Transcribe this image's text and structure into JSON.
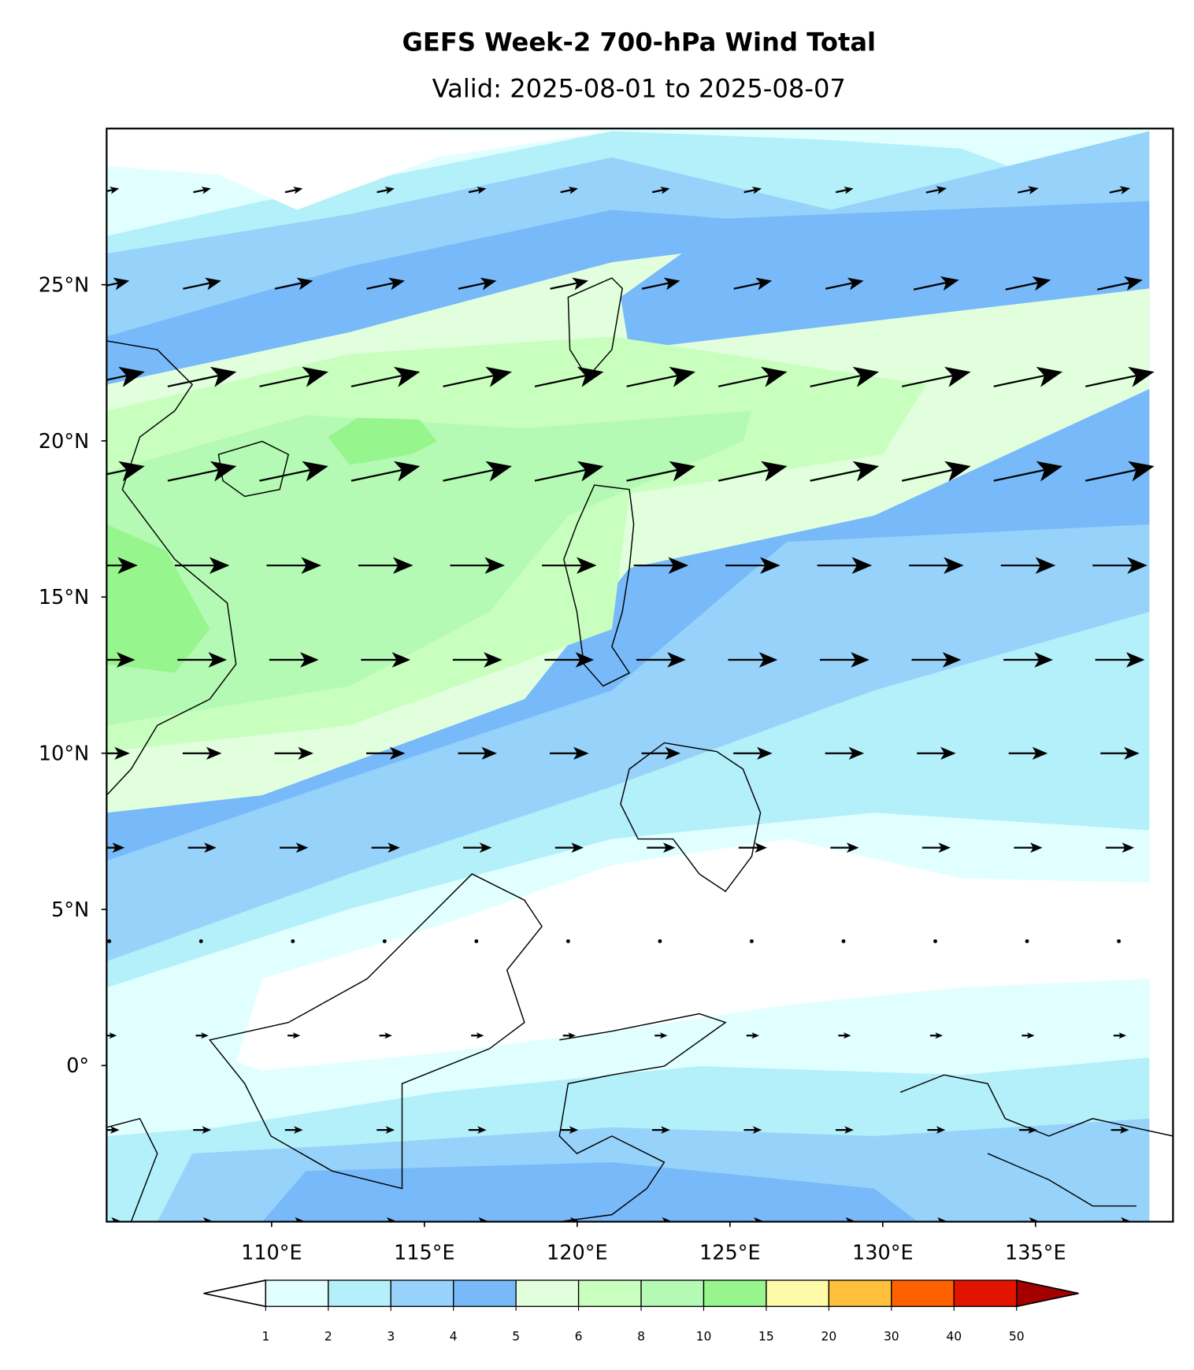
{
  "title": "GEFS Week-2 700-hPa Wind Total",
  "subtitle": "Valid: 2025-08-01 to 2025-08-07",
  "map": {
    "xlim": [
      104.6,
      139.5
    ],
    "ylim": [
      -5,
      30
    ],
    "xticks": [
      {
        "value": 110,
        "label": "110°E"
      },
      {
        "value": 115,
        "label": "115°E"
      },
      {
        "value": 120,
        "label": "120°E"
      },
      {
        "value": 125,
        "label": "125°E"
      },
      {
        "value": 130,
        "label": "130°E"
      },
      {
        "value": 135,
        "label": "135°E"
      }
    ],
    "yticks": [
      {
        "value": 0,
        "label": "0°"
      },
      {
        "value": 5,
        "label": "5°N"
      },
      {
        "value": 10,
        "label": "10°N"
      },
      {
        "value": 15,
        "label": "15°N"
      },
      {
        "value": 20,
        "label": "20°N"
      },
      {
        "value": 25,
        "label": "25°N"
      }
    ]
  },
  "colorbar": {
    "levels": [
      1,
      2,
      3,
      4,
      5,
      6,
      8,
      10,
      15,
      20,
      30,
      40,
      50
    ],
    "colors": [
      "#e1ffff",
      "#b4f0fa",
      "#96d2fa",
      "#78b9fa",
      "#e1ffdc",
      "#c8ffbe",
      "#b4fab4",
      "#96f58c",
      "#fffaaa",
      "#ffc03c",
      "#ff6000",
      "#e11400"
    ],
    "under_color": "#ffffff",
    "over_color": "#a50000"
  }
}
